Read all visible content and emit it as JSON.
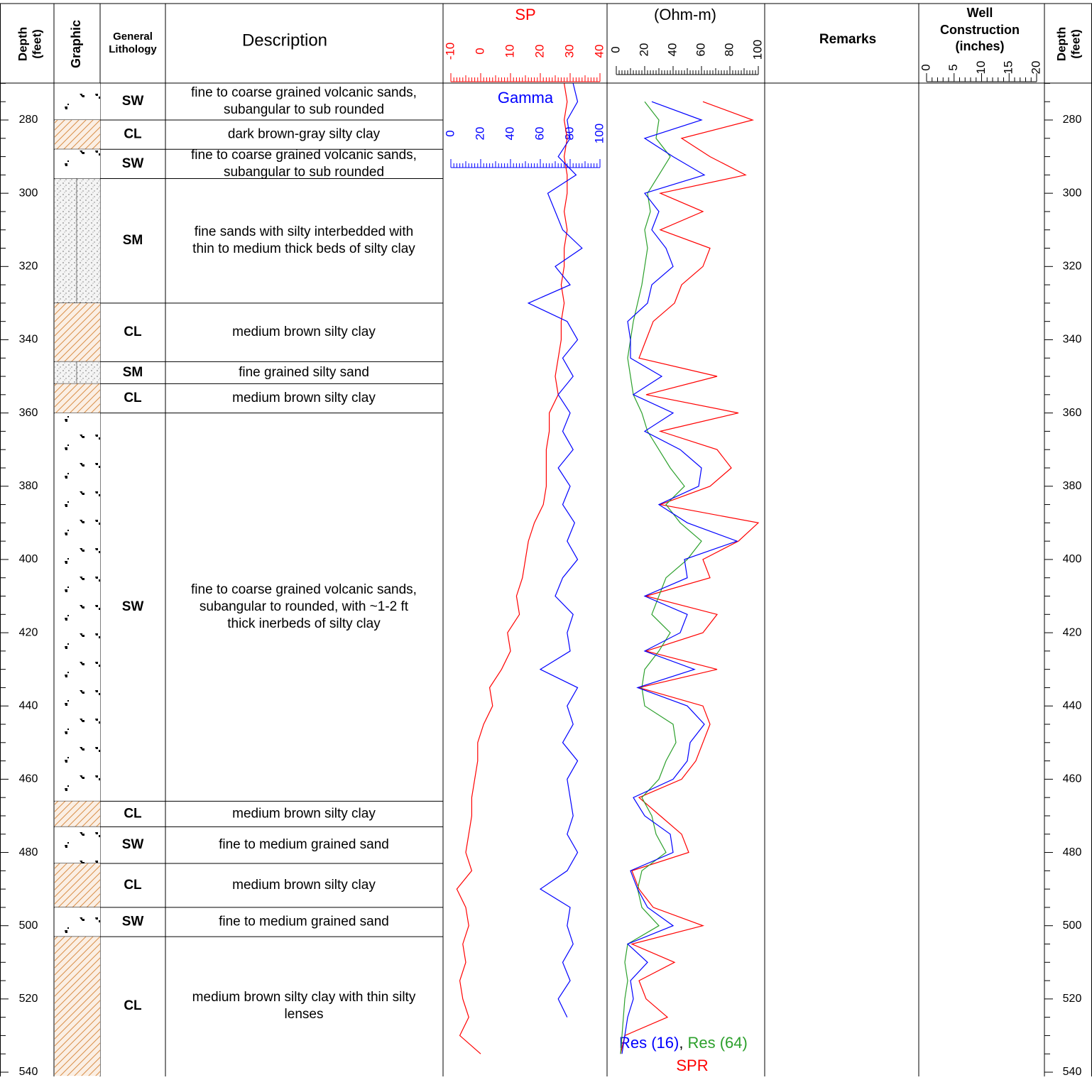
{
  "header": {
    "depth": [
      "Depth",
      "(feet)"
    ],
    "graphic": "Graphic",
    "lithology": [
      "General",
      "Lithology"
    ],
    "description": "Description",
    "remarks": "Remarks",
    "well_construction": [
      "Well",
      "Construction",
      "(inches)"
    ]
  },
  "depth_axis": {
    "lim": [
      270,
      541
    ],
    "ticks": [
      280,
      300,
      320,
      340,
      360,
      380,
      400,
      420,
      440,
      460,
      480,
      500,
      520,
      540
    ]
  },
  "layers": [
    {
      "top": 270,
      "bottom": 280,
      "code": "SW",
      "description": [
        "fine to coarse grained volcanic sands,",
        "subangular to sub rounded"
      ]
    },
    {
      "top": 280,
      "bottom": 288,
      "code": "CL",
      "description": [
        "dark brown-gray silty clay"
      ]
    },
    {
      "top": 288,
      "bottom": 296,
      "code": "SW",
      "description": [
        "fine to coarse grained volcanic sands,",
        "subangular to sub rounded"
      ]
    },
    {
      "top": 296,
      "bottom": 330,
      "code": "SM",
      "description": [
        "fine sands with silty interbedded with",
        "thin to medium thick beds of silty clay"
      ]
    },
    {
      "top": 330,
      "bottom": 346,
      "code": "CL",
      "description": [
        "medium brown silty clay"
      ]
    },
    {
      "top": 346,
      "bottom": 352,
      "code": "SM",
      "description": [
        "fine grained silty sand"
      ]
    },
    {
      "top": 352,
      "bottom": 360,
      "code": "CL",
      "description": [
        "medium brown silty clay"
      ]
    },
    {
      "top": 360,
      "bottom": 466,
      "code": "SW",
      "description": [
        "fine to coarse grained volcanic sands,",
        "subangular to rounded, with ~1-2 ft",
        "thick inerbeds of silty clay"
      ]
    },
    {
      "top": 466,
      "bottom": 473,
      "code": "CL",
      "description": [
        "medium brown silty clay"
      ]
    },
    {
      "top": 473,
      "bottom": 483,
      "code": "SW",
      "description": [
        "fine to medium grained sand"
      ]
    },
    {
      "top": 483,
      "bottom": 495,
      "code": "CL",
      "description": [
        "medium brown silty clay"
      ]
    },
    {
      "top": 495,
      "bottom": 503,
      "code": "SW",
      "description": [
        "fine to medium grained sand"
      ]
    },
    {
      "top": 503,
      "bottom": 541,
      "code": "CL",
      "description": [
        "medium brown silty clay with thin silty",
        "lenses"
      ]
    }
  ],
  "sp": {
    "title": "SP",
    "color": "#ff0000",
    "lim": [
      -10,
      40
    ],
    "ticks": [
      -10,
      0,
      10,
      20,
      30,
      40
    ],
    "depth": [
      270,
      275,
      280,
      285,
      290,
      295,
      300,
      305,
      310,
      315,
      320,
      325,
      330,
      335,
      340,
      345,
      350,
      355,
      360,
      365,
      370,
      375,
      380,
      385,
      390,
      395,
      400,
      405,
      410,
      415,
      420,
      425,
      430,
      435,
      440,
      445,
      450,
      455,
      460,
      465,
      470,
      475,
      480,
      485,
      490,
      495,
      500,
      505,
      510,
      515,
      520,
      525,
      530,
      535
    ],
    "values": [
      28,
      29,
      28,
      29,
      28,
      29,
      29,
      28,
      29,
      28,
      28,
      27,
      28,
      27,
      27,
      26,
      25,
      26,
      23,
      23,
      22,
      22,
      22,
      21,
      18,
      16,
      15,
      14,
      12,
      13,
      9,
      10,
      7,
      3,
      4,
      1,
      -1,
      -1,
      -2,
      -3,
      -3,
      -4,
      -5,
      -3,
      -8,
      -5,
      -4,
      -6,
      -5,
      -7,
      -6,
      -4,
      -7,
      0
    ]
  },
  "gamma": {
    "title": "Gamma",
    "color": "#0000ff",
    "lim": [
      0,
      100
    ],
    "ticks": [
      0,
      20,
      40,
      60,
      80,
      100
    ],
    "depth": [
      270,
      275,
      280,
      285,
      290,
      295,
      300,
      305,
      310,
      315,
      320,
      325,
      330,
      335,
      340,
      345,
      350,
      355,
      360,
      365,
      370,
      375,
      380,
      385,
      390,
      395,
      400,
      405,
      410,
      415,
      420,
      425,
      430,
      435,
      440,
      445,
      450,
      455,
      460,
      465,
      470,
      475,
      480,
      485,
      490,
      495,
      500,
      505,
      510,
      515,
      520,
      525
    ],
    "values": [
      82,
      85,
      78,
      80,
      72,
      84,
      65,
      70,
      75,
      88,
      70,
      80,
      52,
      78,
      85,
      75,
      82,
      72,
      80,
      75,
      82,
      72,
      80,
      75,
      83,
      78,
      85,
      75,
      70,
      82,
      78,
      80,
      60,
      85,
      78,
      82,
      75,
      85,
      78,
      80,
      82,
      78,
      85,
      78,
      60,
      80,
      78,
      82,
      75,
      80,
      72,
      78
    ]
  },
  "resistivity": {
    "title": "(Ohm-m)",
    "lim": [
      0,
      100
    ],
    "ticks": [
      0,
      20,
      40,
      60,
      80,
      100
    ],
    "separator": ",",
    "depth": [
      275,
      280,
      285,
      290,
      295,
      300,
      305,
      310,
      315,
      320,
      325,
      330,
      335,
      340,
      345,
      350,
      355,
      360,
      365,
      370,
      375,
      380,
      385,
      390,
      395,
      400,
      405,
      410,
      415,
      420,
      425,
      430,
      435,
      440,
      445,
      450,
      455,
      460,
      465,
      470,
      475,
      480,
      485,
      490,
      495,
      500,
      505,
      510,
      515,
      520,
      525,
      530,
      535
    ],
    "series": [
      {
        "name": "Res (16)",
        "color": "#0000ff",
        "values": [
          25,
          60,
          20,
          40,
          62,
          20,
          30,
          25,
          35,
          40,
          25,
          22,
          8,
          10,
          10,
          32,
          12,
          40,
          20,
          45,
          60,
          58,
          30,
          50,
          85,
          48,
          50,
          20,
          50,
          45,
          20,
          55,
          15,
          50,
          62,
          52,
          50,
          40,
          12,
          20,
          38,
          40,
          10,
          15,
          22,
          40,
          8,
          22,
          10,
          12,
          8,
          6,
          4
        ]
      },
      {
        "name": "Res (64)",
        "color": "#2ca02c",
        "values": [
          20,
          30,
          28,
          38,
          30,
          22,
          24,
          20,
          22,
          20,
          18,
          15,
          12,
          10,
          8,
          10,
          12,
          18,
          22,
          30,
          38,
          48,
          35,
          45,
          60,
          50,
          35,
          30,
          25,
          38,
          30,
          20,
          18,
          20,
          40,
          42,
          35,
          30,
          18,
          25,
          28,
          35,
          18,
          15,
          18,
          30,
          8,
          6,
          8,
          6,
          5,
          4,
          3
        ]
      },
      {
        "name": "SPR",
        "color": "#ff0000",
        "values": [
          61,
          96,
          46,
          66,
          91,
          31,
          61,
          31,
          66,
          61,
          46,
          41,
          26,
          21,
          16,
          71,
          21,
          86,
          31,
          71,
          81,
          66,
          31,
          100,
          86,
          61,
          66,
          21,
          71,
          61,
          21,
          71,
          16,
          61,
          66,
          61,
          56,
          46,
          16,
          31,
          46,
          51,
          11,
          16,
          26,
          61,
          11,
          41,
          16,
          21,
          36,
          6,
          3
        ]
      }
    ]
  },
  "well_construction": {
    "lim": [
      0,
      20
    ],
    "ticks": [
      0,
      5,
      10,
      15,
      20
    ]
  }
}
